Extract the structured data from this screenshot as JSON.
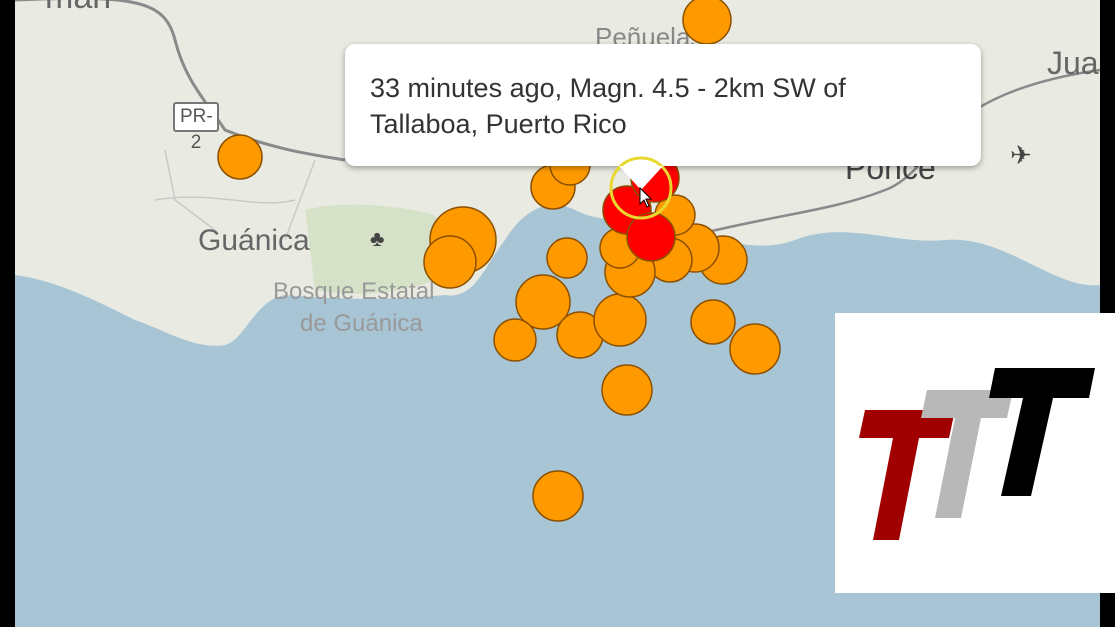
{
  "map": {
    "place_labels": {
      "top_left_partial": "man",
      "top_center_partial": "Peñuelas",
      "top_right_partial": "Jua",
      "guanica": "Guánica",
      "forest": "Bosque Estatal",
      "forest_line2": "de Guánica",
      "ponce_partial": "Ponce"
    },
    "road_shield": "PR-2",
    "icons": [
      "tree-icon",
      "airport-icon",
      "mouse-cursor-icon"
    ],
    "marker_colors": {
      "latest": "#ff0000",
      "recent": "#ff9900",
      "highlight_ring": "#e8d830"
    }
  },
  "popup": {
    "text": "33 minutes ago, Magn. 4.5 - 2km SW of Tallaboa, Puerto Rico"
  },
  "logo": {
    "text": "TTT",
    "colors": [
      "#a00000",
      "#b8b8b8",
      "#000000"
    ]
  }
}
